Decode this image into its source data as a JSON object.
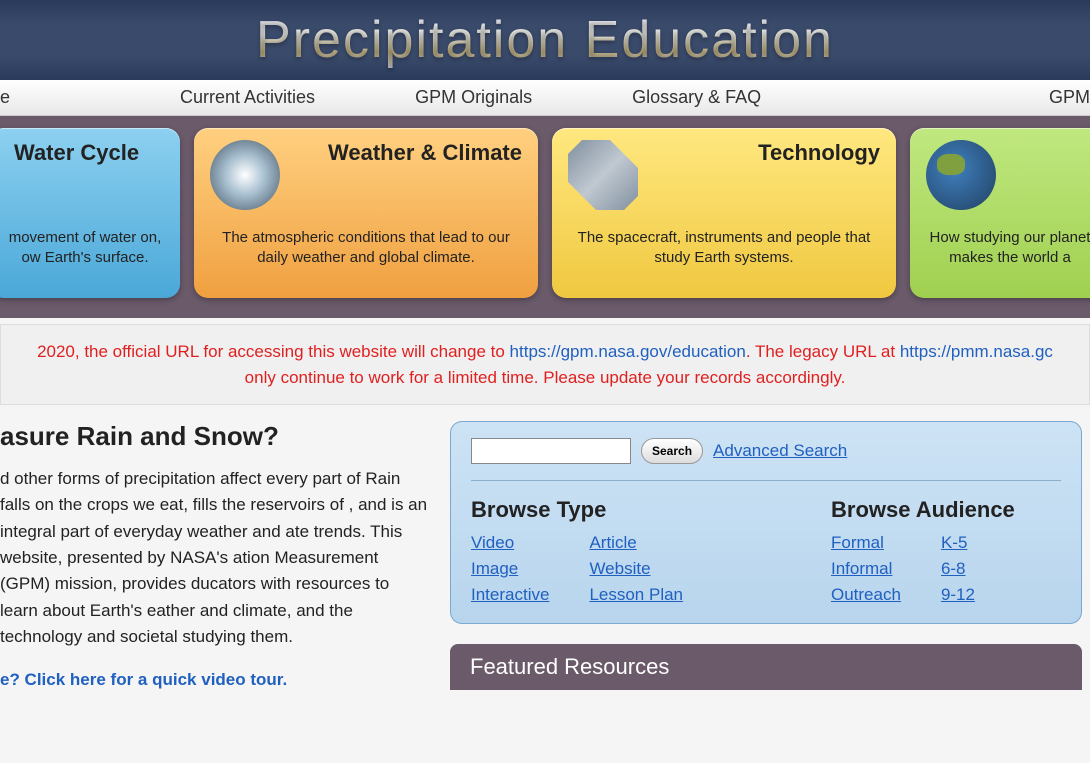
{
  "header": {
    "title": "Precipitation Education"
  },
  "nav": {
    "items": [
      "e",
      "Current Activities",
      "GPM Originals",
      "Glossary  &  FAQ",
      "GPM"
    ]
  },
  "topics": [
    {
      "title": "Water Cycle",
      "desc": "movement of water on, ow Earth's surface.",
      "color": "card-blue",
      "icon": "none"
    },
    {
      "title": "Weather & Climate",
      "desc": "The atmospheric conditions that lead to our daily weather and global climate.",
      "color": "card-orange",
      "icon": "hurricane"
    },
    {
      "title": "Technology",
      "desc": "The spacecraft, instruments and people that study Earth systems.",
      "color": "card-yellow",
      "icon": "satellite"
    },
    {
      "title": "",
      "desc": "How studying our planet makes the world a",
      "color": "card-green",
      "icon": "earth"
    }
  ],
  "notice": {
    "parts": [
      {
        "cls": "red",
        "text": " 2020, the official URL for accessing this website will change to "
      },
      {
        "cls": "link",
        "text": "https://gpm.nasa.gov/education"
      },
      {
        "cls": "red",
        "text": ". The legacy URL at "
      },
      {
        "cls": "link",
        "text": "https://pmm.nasa.gc"
      },
      {
        "cls": "red",
        "text": " only continue to work for a limited time. Please update your records accordingly."
      }
    ]
  },
  "article": {
    "heading": "asure Rain and Snow?",
    "body": "d other forms of precipitation affect every part of Rain falls on the crops we eat, fills the reservoirs of , and is an integral part of everyday weather and ate trends. This website, presented by NASA's ation Measurement (GPM) mission, provides ducators with resources to learn about Earth's eather and climate, and the technology and societal  studying them.",
    "tour_link": "e? Click here for a quick video tour."
  },
  "browse": {
    "search_button": "Search",
    "advanced": "Advanced Search",
    "type_heading": "Browse Type",
    "type_links_a": [
      "Video",
      "Image",
      "Interactive"
    ],
    "type_links_b": [
      "Article",
      "Website",
      "Lesson Plan"
    ],
    "audience_heading": "Browse Audience",
    "aud_links_a": [
      "Formal",
      "Informal",
      "Outreach"
    ],
    "aud_links_b": [
      "K-5",
      "6-8",
      "9-12"
    ]
  },
  "featured": {
    "title": "Featured Resources"
  },
  "colors": {
    "header_bg": "#3a4a6a",
    "topic_row_bg": "#6a5a6a",
    "notice_red": "#e02020",
    "link_blue": "#2060c0",
    "panel_bg": "#cde3f5"
  }
}
